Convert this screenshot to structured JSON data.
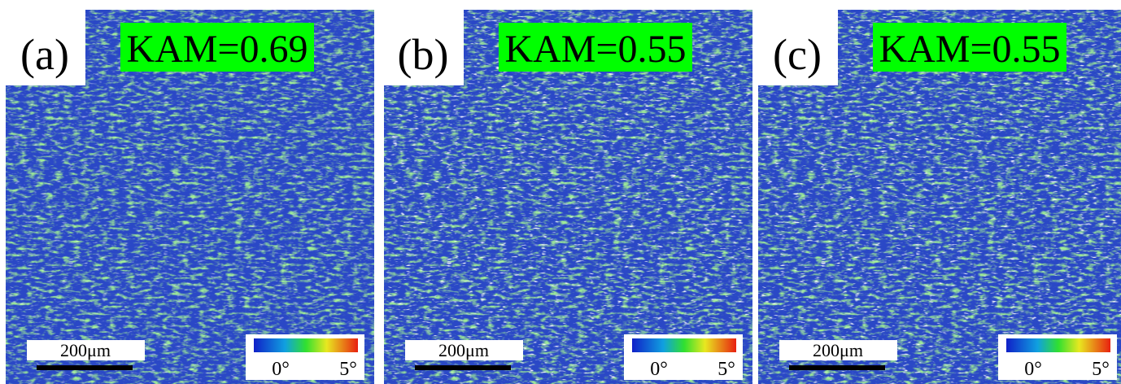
{
  "panels": [
    {
      "label": "(a)",
      "kam": "KAM=0.69",
      "scale": "200μm",
      "colorbar_min": "0°",
      "colorbar_max": "5°"
    },
    {
      "label": "(b)",
      "kam": "KAM=0.55",
      "scale": "200μm",
      "colorbar_min": "0°",
      "colorbar_max": "5°"
    },
    {
      "label": "(c)",
      "kam": "KAM=0.55",
      "scale": "200μm",
      "colorbar_min": "0°",
      "colorbar_max": "5°"
    }
  ]
}
